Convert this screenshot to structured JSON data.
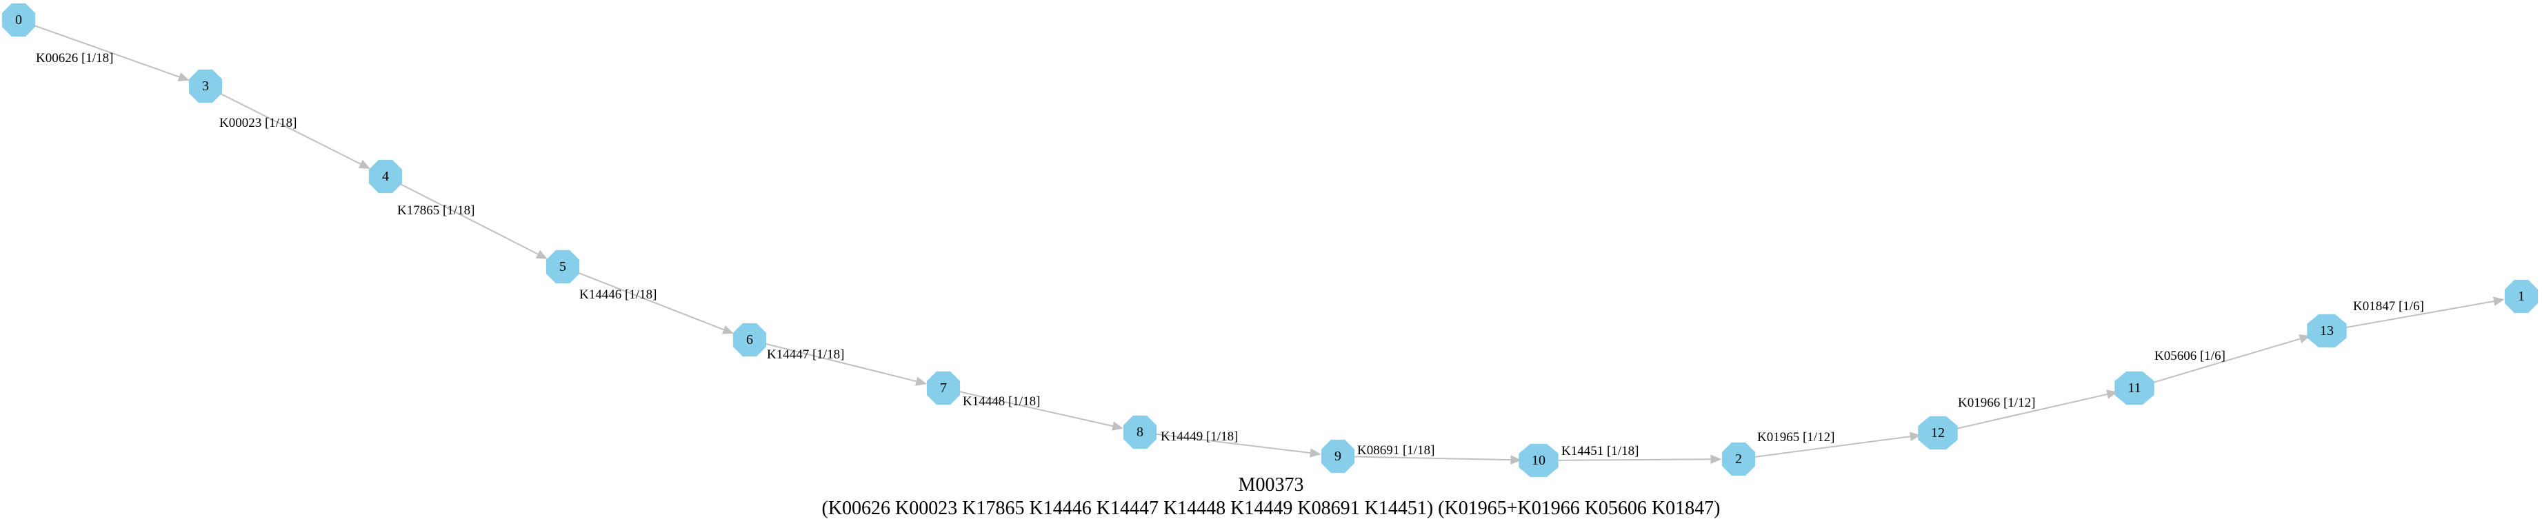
{
  "diagram": {
    "caption": {
      "title": "M00373",
      "definition": "(K00626 K00023 K17865 K14446 K14447 K14448 K14449 K08691 K14451) (K01965+K01966 K05606 K01847)"
    },
    "nodes": [
      "0",
      "3",
      "4",
      "5",
      "6",
      "7",
      "8",
      "9",
      "10",
      "2",
      "12",
      "11",
      "13",
      "1"
    ],
    "edges": [
      {
        "from": "0",
        "to": "3",
        "label": "K00626 [1/18]"
      },
      {
        "from": "3",
        "to": "4",
        "label": "K00023 [1/18]"
      },
      {
        "from": "4",
        "to": "5",
        "label": "K17865 [1/18]"
      },
      {
        "from": "5",
        "to": "6",
        "label": "K14446 [1/18]"
      },
      {
        "from": "6",
        "to": "7",
        "label": "K14447 [1/18]"
      },
      {
        "from": "7",
        "to": "8",
        "label": "K14448 [1/18]"
      },
      {
        "from": "8",
        "to": "9",
        "label": "K14449 [1/18]"
      },
      {
        "from": "9",
        "to": "10",
        "label": "K08691 [1/18]"
      },
      {
        "from": "10",
        "to": "2",
        "label": "K14451 [1/18]"
      },
      {
        "from": "2",
        "to": "12",
        "label": "K01965 [1/12]"
      },
      {
        "from": "12",
        "to": "11",
        "label": "K01966 [1/12]"
      },
      {
        "from": "11",
        "to": "13",
        "label": "K05606 [1/6]"
      },
      {
        "from": "13",
        "to": "1",
        "label": "K01847 [1/6]"
      }
    ],
    "colors": {
      "node_fill": "#87CEEB",
      "edge": "#c0c0c0",
      "text": "#000000"
    },
    "node_shape": "octagon"
  }
}
